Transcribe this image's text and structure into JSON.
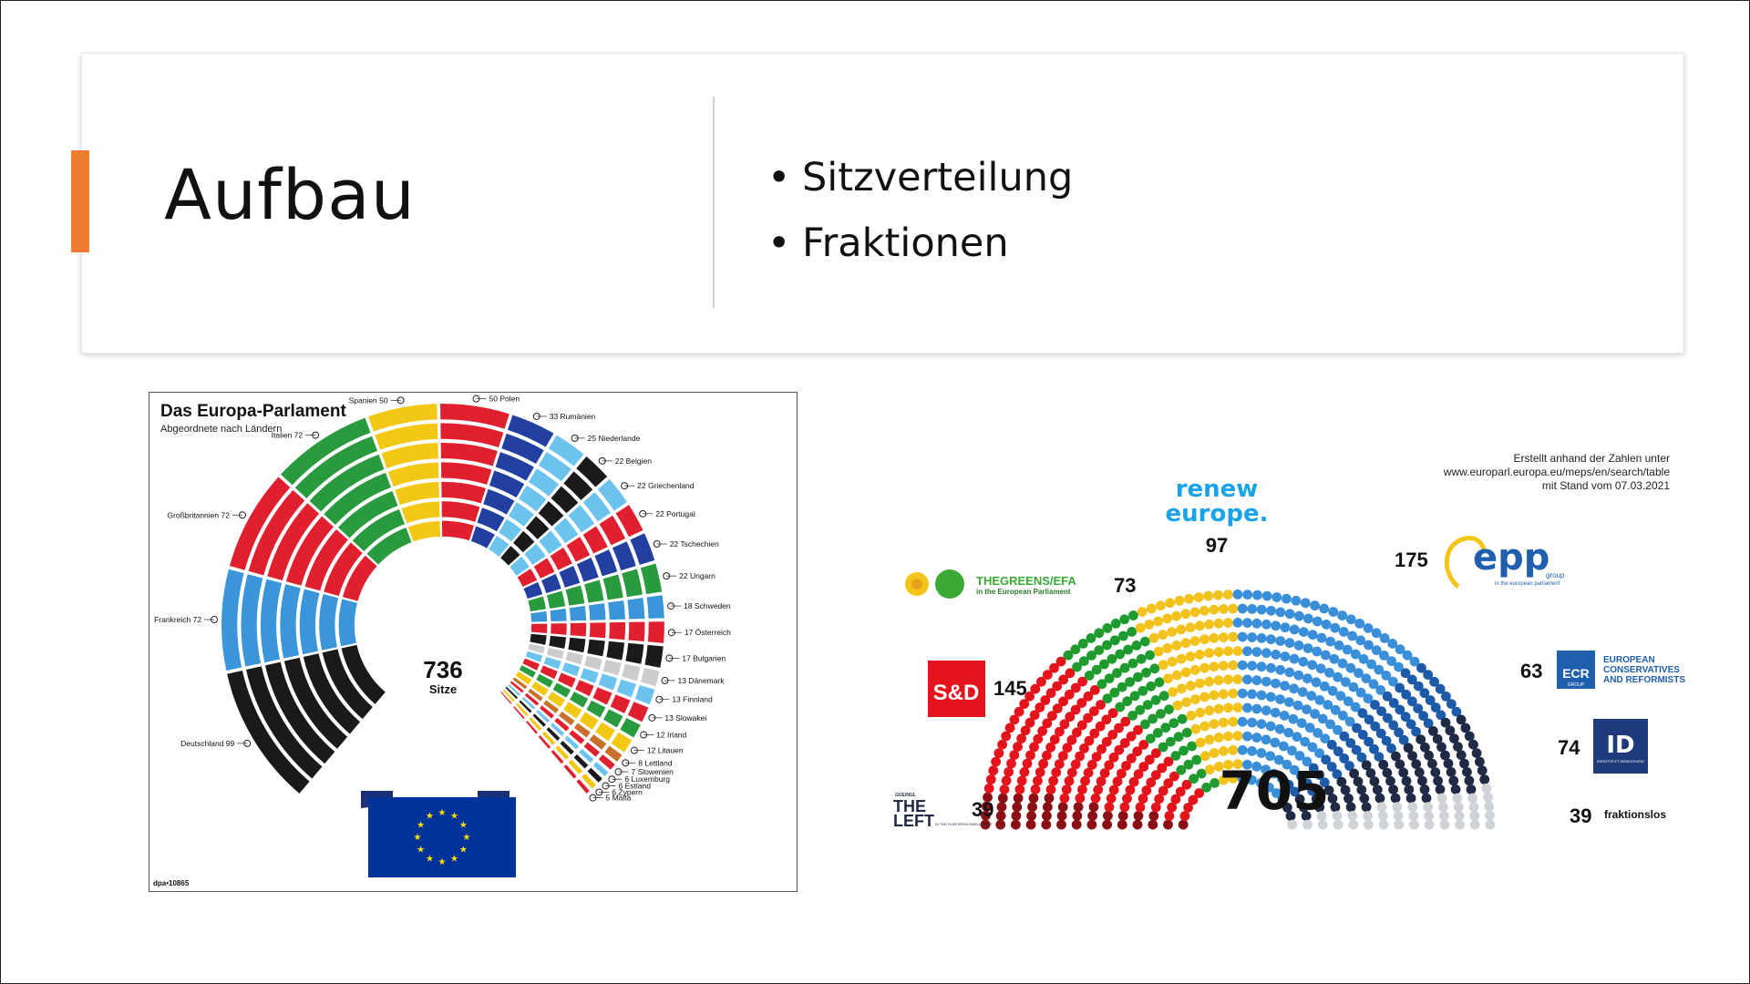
{
  "slide": {
    "title": "Aufbau",
    "bullets": [
      "Sitzverteilung",
      "Fraktionen"
    ],
    "accent_color": "#ed7d31"
  },
  "country_chart": {
    "title": "Das Europa-Parlament",
    "subtitle": "Abgeordnete nach Ländern",
    "center_number": "736",
    "center_label": "Sitze",
    "source": "dpa•10865",
    "countries": [
      {
        "name": "Deutschland",
        "seats": 99,
        "color": "#1a1a1a"
      },
      {
        "name": "Frankreich",
        "seats": 72,
        "color": "#3a96d8"
      },
      {
        "name": "Großbritannien",
        "seats": 72,
        "color": "#e0202e"
      },
      {
        "name": "Italien",
        "seats": 72,
        "color": "#2a9a3e"
      },
      {
        "name": "Spanien",
        "seats": 50,
        "color": "#f2c814"
      },
      {
        "name": "Polen",
        "seats": 50,
        "color": "#e0202e"
      },
      {
        "name": "Rumänien",
        "seats": 33,
        "color": "#2340a0"
      },
      {
        "name": "Niederlande",
        "seats": 25,
        "color": "#6cc4ee"
      },
      {
        "name": "Belgien",
        "seats": 22,
        "color": "#1a1a1a"
      },
      {
        "name": "Griechenland",
        "seats": 22,
        "color": "#6cc4ee"
      },
      {
        "name": "Portugal",
        "seats": 22,
        "color": "#e0202e"
      },
      {
        "name": "Tschechien",
        "seats": 22,
        "color": "#2340a0"
      },
      {
        "name": "Ungarn",
        "seats": 22,
        "color": "#2a9a3e"
      },
      {
        "name": "Schweden",
        "seats": 18,
        "color": "#3a96d8"
      },
      {
        "name": "Österreich",
        "seats": 17,
        "color": "#e0202e"
      },
      {
        "name": "Bulgarien",
        "seats": 17,
        "color": "#1a1a1a"
      },
      {
        "name": "Dänemark",
        "seats": 13,
        "color": "#cccccc"
      },
      {
        "name": "Finnland",
        "seats": 13,
        "color": "#6cc4ee"
      },
      {
        "name": "Slowakei",
        "seats": 13,
        "color": "#e0202e"
      },
      {
        "name": "Irland",
        "seats": 12,
        "color": "#2a9a3e"
      },
      {
        "name": "Litauen",
        "seats": 12,
        "color": "#f2c814"
      },
      {
        "name": "Lettland",
        "seats": 8,
        "color": "#c8702a"
      },
      {
        "name": "Slowenien",
        "seats": 7,
        "color": "#e0202e"
      },
      {
        "name": "Luxemburg",
        "seats": 6,
        "color": "#6cc4ee"
      },
      {
        "name": "Estland",
        "seats": 6,
        "color": "#1a1a1a"
      },
      {
        "name": "Zypern",
        "seats": 6,
        "color": "#f2c814"
      },
      {
        "name": "Malta",
        "seats": 5,
        "color": "#e0202e"
      }
    ]
  },
  "group_chart": {
    "note": [
      "Erstellt anhand der Zahlen unter",
      "www.europarl.europa.eu/meps/en/search/table",
      "mit Stand vom 07.03.2021"
    ],
    "total": "705",
    "groups": [
      {
        "name": "THE LEFT",
        "seats": 39,
        "color": "#8b1016"
      },
      {
        "name": "S&D",
        "seats": 145,
        "color": "#e3141b"
      },
      {
        "name": "THE GREENS/EFA",
        "seats": 73,
        "color": "#1f9a2f"
      },
      {
        "name": "renew europe.",
        "seats": 97,
        "color": "#f2c21e"
      },
      {
        "name": "epp",
        "seats": 175,
        "color": "#3b8fd9"
      },
      {
        "name": "ECR",
        "seats": 63,
        "color": "#1d5aa8"
      },
      {
        "name": "ID",
        "seats": 74,
        "color": "#1f2a44"
      },
      {
        "name": "fraktionslos",
        "seats": 39,
        "color": "#cfd2d6"
      }
    ],
    "labels": {
      "greens_line1": "THEGREENS/EFA",
      "greens_line2": "in the European Parliament",
      "renew_line1": "renew",
      "renew_line2": "europe.",
      "epp_logo": "epp",
      "epp_sub": "group",
      "epp_sub2": "in the european parliament",
      "sd_logo": "S&D",
      "ecr_logo": "ECR",
      "ecr_sub": "GROUP",
      "ecr_text1": "EUROPEAN",
      "ecr_text2": "CONSERVATIVES",
      "ecr_text3": "AND REFORMISTS",
      "id_logo": "ID",
      "id_sub": "IDENTITÉ ET DÉMOCRATIE",
      "left_small": "GUE/NGL",
      "left_line1": "THE",
      "left_line2": "LEFT",
      "left_sub": "IN THE EUROPEAN PARLIAMENT",
      "nonattached": "fraktionslos"
    },
    "colors": {
      "renew_text": "#1aa3e8",
      "greens_green": "#3aaa35",
      "epp_blue": "#1f5fae",
      "epp_yellow": "#f3c51b",
      "sd_red": "#e3141b",
      "ecr_blue": "#1f5fae",
      "id_blue": "#1f3a7a"
    }
  }
}
